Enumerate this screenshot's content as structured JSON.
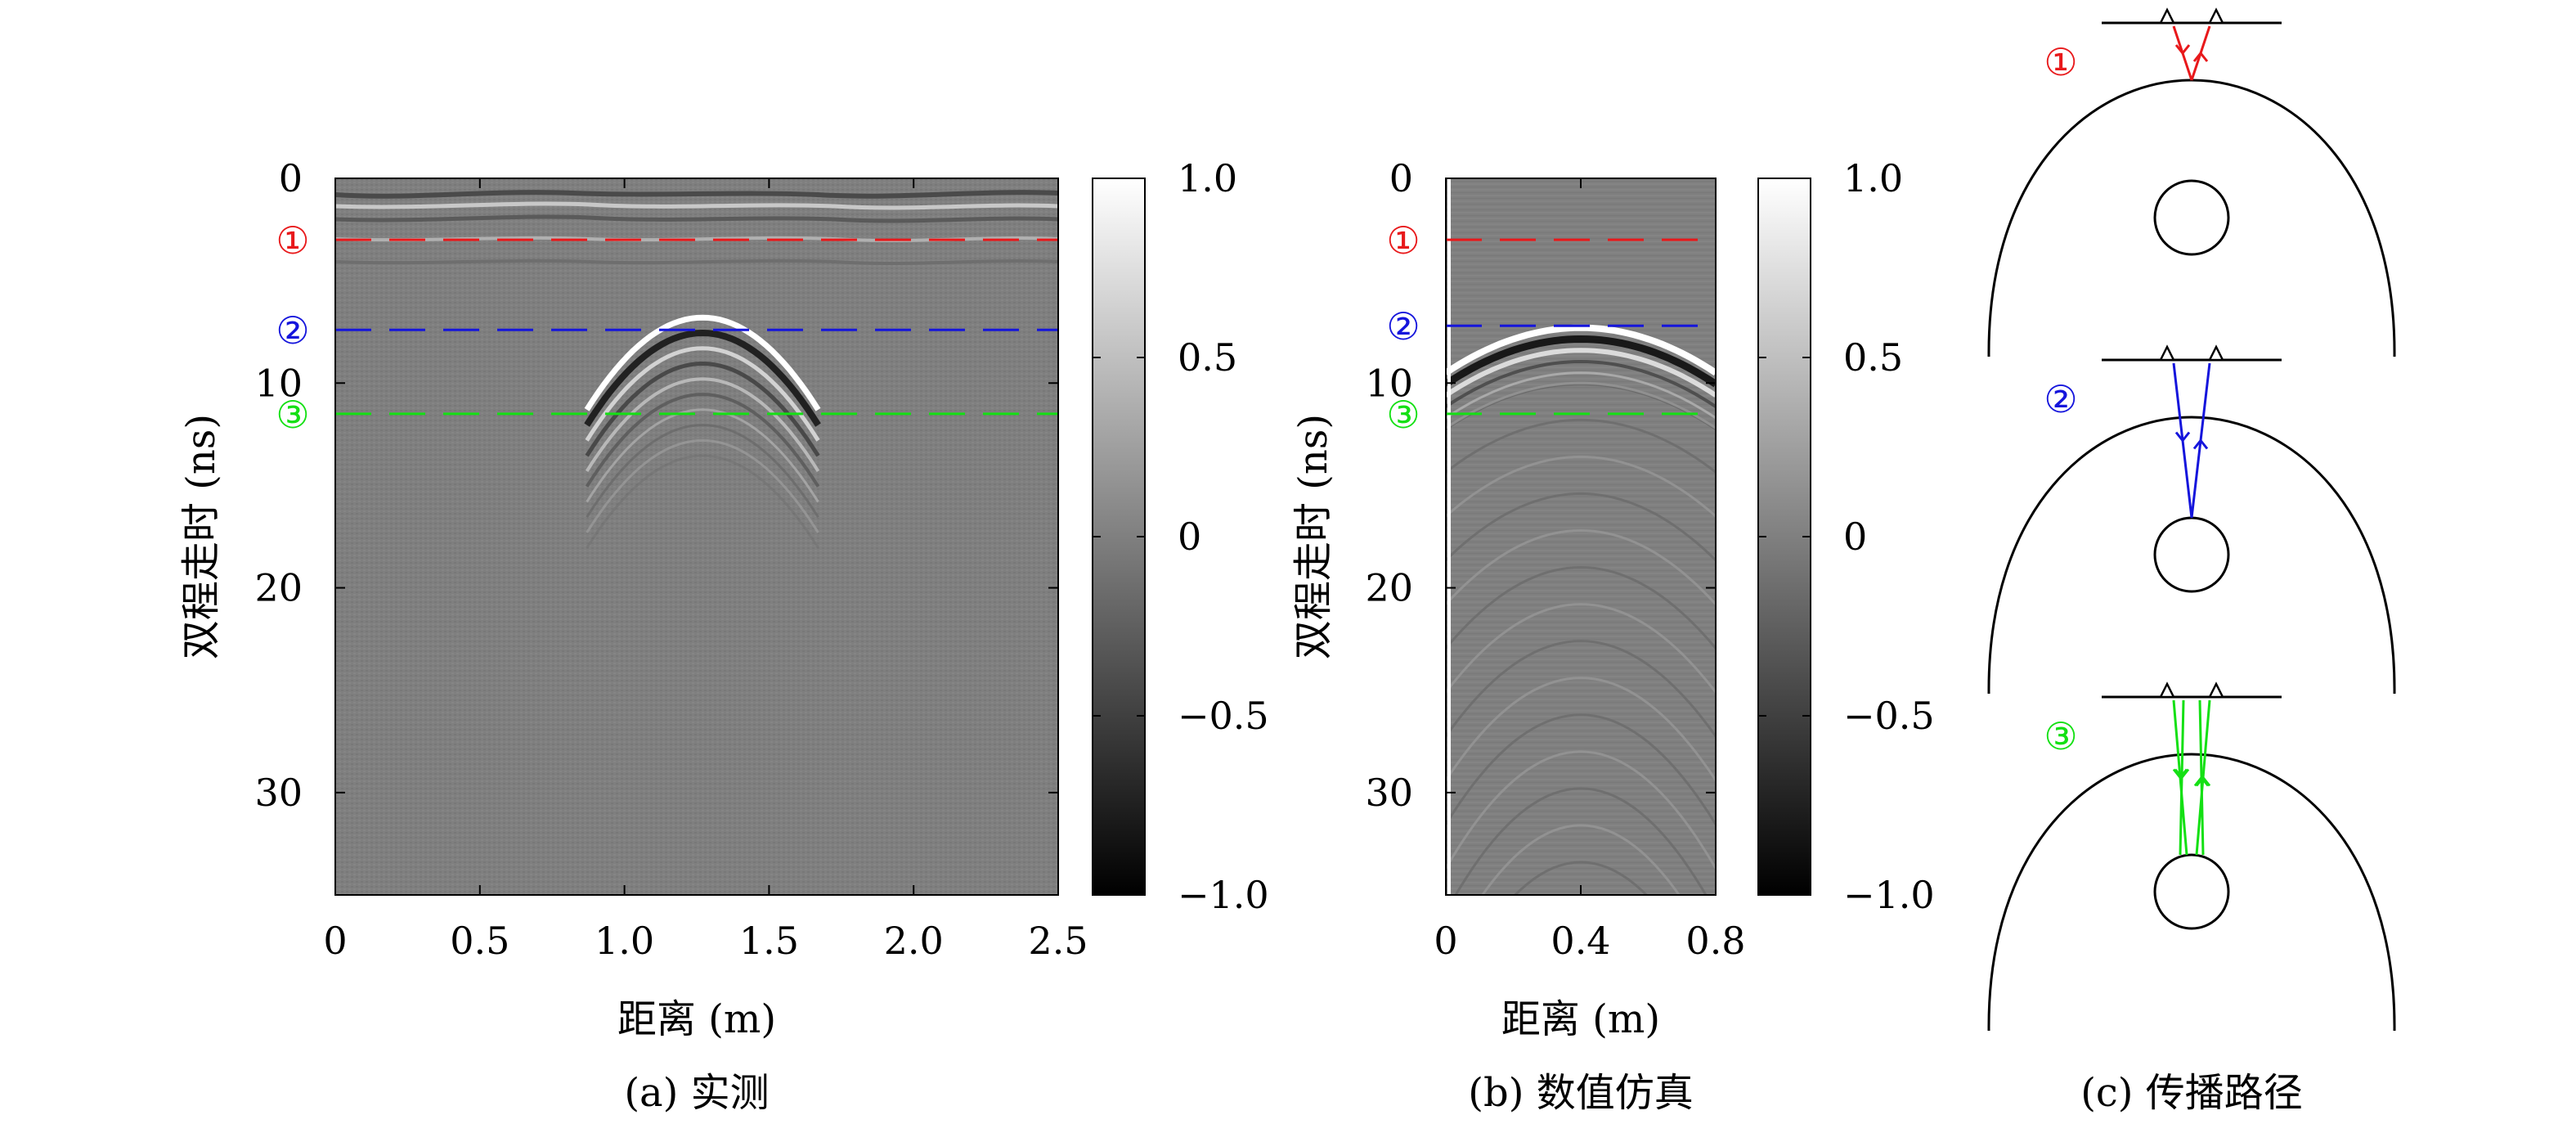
{
  "marker_labels": [
    "①",
    "②",
    "③"
  ],
  "colors": {
    "red": "#e8191b",
    "blue": "#1515dc",
    "green": "#14e014"
  },
  "chart_data": [
    {
      "type": "heatmap",
      "panel": "a",
      "caption": "(a) 实测",
      "xlabel": "距离 (m)",
      "ylabel": "双程走时 (ns)",
      "xlim": [
        0,
        2.5
      ],
      "ylim": [
        0,
        35
      ],
      "y_inverted": true,
      "xticks": [
        0,
        0.5,
        1.0,
        1.5,
        2.0,
        2.5
      ],
      "xtick_labels": [
        "0",
        "0.5",
        "1.0",
        "1.5",
        "2.0",
        "2.5"
      ],
      "yticks": [
        0,
        10,
        20,
        30
      ],
      "ytick_labels": [
        "0",
        "10",
        "20",
        "30"
      ],
      "colormap": "gray",
      "colorbar": {
        "range": [
          -1.0,
          1.0
        ],
        "ticks": [
          1.0,
          0.5,
          0,
          -0.5,
          -1.0
        ],
        "tick_labels": [
          "1.0",
          "0.5",
          "0",
          "−0.5",
          "−1.0"
        ]
      },
      "hyperbola": {
        "apex_x": 1.27,
        "apex_t": 6.8,
        "halfwidth": 0.4,
        "drop": 4.5
      },
      "marker_lines": [
        {
          "label": "①",
          "t": 3.0,
          "color": "red"
        },
        {
          "label": "②",
          "t": 7.4,
          "color": "blue"
        },
        {
          "label": "③",
          "t": 11.5,
          "color": "green"
        }
      ]
    },
    {
      "type": "heatmap",
      "panel": "b",
      "caption": "(b) 数值仿真",
      "xlabel": "距离 (m)",
      "ylabel": "双程走时 (ns)",
      "xlim": [
        0,
        0.8
      ],
      "ylim": [
        0,
        35
      ],
      "y_inverted": true,
      "xticks": [
        0,
        0.4,
        0.8
      ],
      "xtick_labels": [
        "0",
        "0.4",
        "0.8"
      ],
      "yticks": [
        0,
        10,
        20,
        30
      ],
      "ytick_labels": [
        "0",
        "10",
        "20",
        "30"
      ],
      "colormap": "gray",
      "colorbar": {
        "range": [
          -1.0,
          1.0
        ],
        "ticks": [
          1.0,
          0.5,
          0,
          -0.5,
          -1.0
        ],
        "tick_labels": [
          "1.0",
          "0.5",
          "0",
          "−0.5",
          "−1.0"
        ]
      },
      "hyperbola": {
        "apex_x": 0.4,
        "apex_t": 7.3,
        "halfwidth": 0.4,
        "drop": 2.2
      },
      "marker_lines": [
        {
          "label": "①",
          "t": 3.0,
          "color": "red"
        },
        {
          "label": "②",
          "t": 7.2,
          "color": "blue"
        },
        {
          "label": "③",
          "t": 11.5,
          "color": "green"
        }
      ]
    },
    {
      "type": "diagram",
      "panel": "c",
      "caption": "(c) 传播路径",
      "paths": [
        {
          "label": "①",
          "color": "red",
          "description": "surface reflection"
        },
        {
          "label": "②",
          "color": "blue",
          "description": "reflection from buried object"
        },
        {
          "label": "③",
          "color": "green",
          "description": "multiple reflection"
        }
      ]
    }
  ]
}
